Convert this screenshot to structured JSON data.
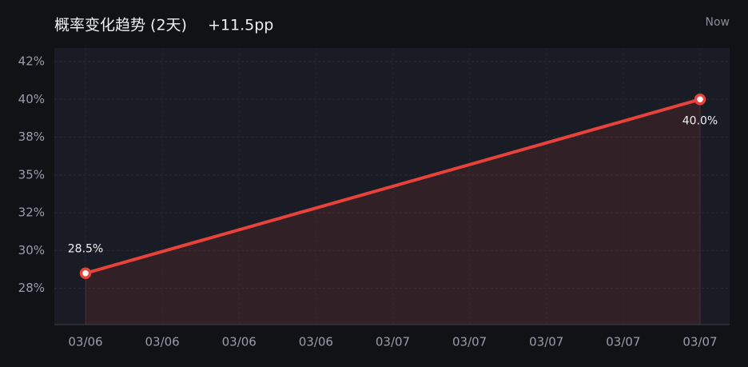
{
  "chart_data": {
    "type": "line",
    "title": "概率变化趋势 (2天)",
    "subtitle": "+11.5pp",
    "corner_label": "Now",
    "xtick_labels": [
      "03/06",
      "03/06",
      "03/06",
      "03/06",
      "03/07",
      "03/07",
      "03/07",
      "03/07",
      "03/07"
    ],
    "series": [
      {
        "name": "概率",
        "color": "#e8433b",
        "x": [
          "03/06",
          "03/07"
        ],
        "values": [
          28.5,
          40.0
        ],
        "value_labels": [
          "28.5%",
          "40.0%"
        ]
      }
    ],
    "ylim": [
      25.1,
      43.4
    ],
    "yticks": [
      {
        "value": 27.5,
        "label": "28%"
      },
      {
        "value": 30,
        "label": "30%"
      },
      {
        "value": 32.5,
        "label": "32%"
      },
      {
        "value": 35,
        "label": "35%"
      },
      {
        "value": 37.5,
        "label": "38%"
      },
      {
        "value": 40,
        "label": "40%"
      },
      {
        "value": 42.5,
        "label": "42%"
      }
    ],
    "grid": true
  }
}
